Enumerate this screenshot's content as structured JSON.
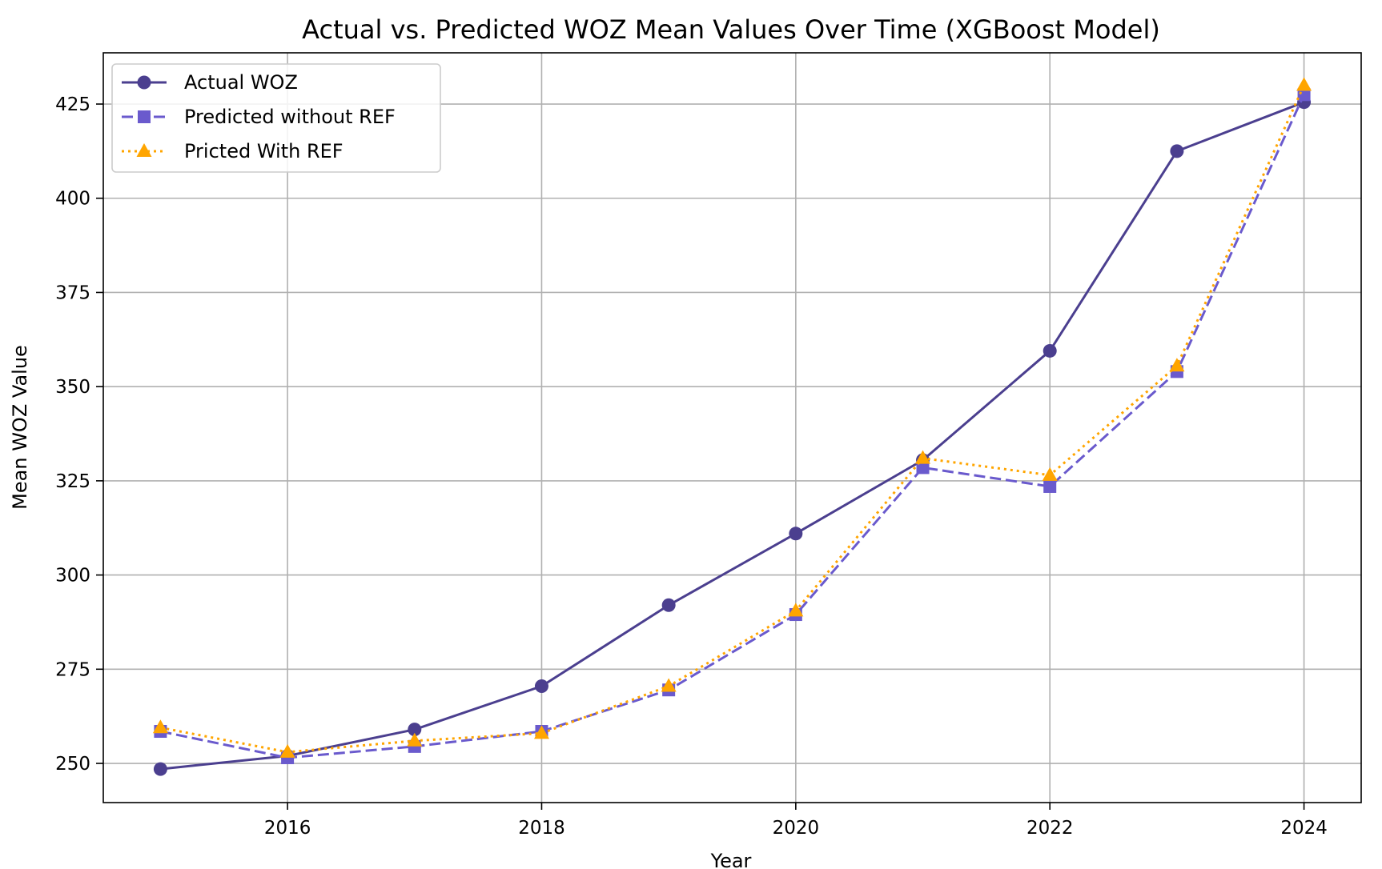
{
  "chart_data": {
    "type": "line",
    "title": "Actual vs. Predicted WOZ Mean Values Over Time (XGBoost Model)",
    "xlabel": "Year",
    "ylabel": "Mean WOZ Value",
    "x": [
      2015,
      2016,
      2017,
      2018,
      2019,
      2020,
      2021,
      2022,
      2023,
      2024
    ],
    "xlim": [
      2014.55,
      2024.45
    ],
    "ylim": [
      239.6,
      438.6
    ],
    "xticks": [
      2016,
      2018,
      2020,
      2022,
      2024
    ],
    "yticks": [
      250,
      275,
      300,
      325,
      350,
      375,
      400,
      425
    ],
    "grid": true,
    "legend_position": "top-left",
    "series": [
      {
        "name": "Actual WOZ",
        "values": [
          248.5,
          252.0,
          259.0,
          270.5,
          292.0,
          311.0,
          330.5,
          359.5,
          412.5,
          425.5
        ],
        "color": "#4b3f8f",
        "line_style": "solid",
        "marker": "circle"
      },
      {
        "name": "Predicted without REF",
        "values": [
          258.5,
          251.5,
          254.5,
          258.5,
          269.5,
          289.5,
          328.5,
          323.5,
          354.0,
          427.5
        ],
        "color": "#6a5acd",
        "line_style": "dashed",
        "marker": "square"
      },
      {
        "name": "Pricted With REF",
        "values": [
          259.5,
          253.0,
          256.0,
          258.0,
          270.5,
          290.5,
          331.0,
          326.5,
          355.5,
          430.0
        ],
        "color": "#ffa500",
        "line_style": "dotted",
        "marker": "triangle"
      }
    ]
  }
}
